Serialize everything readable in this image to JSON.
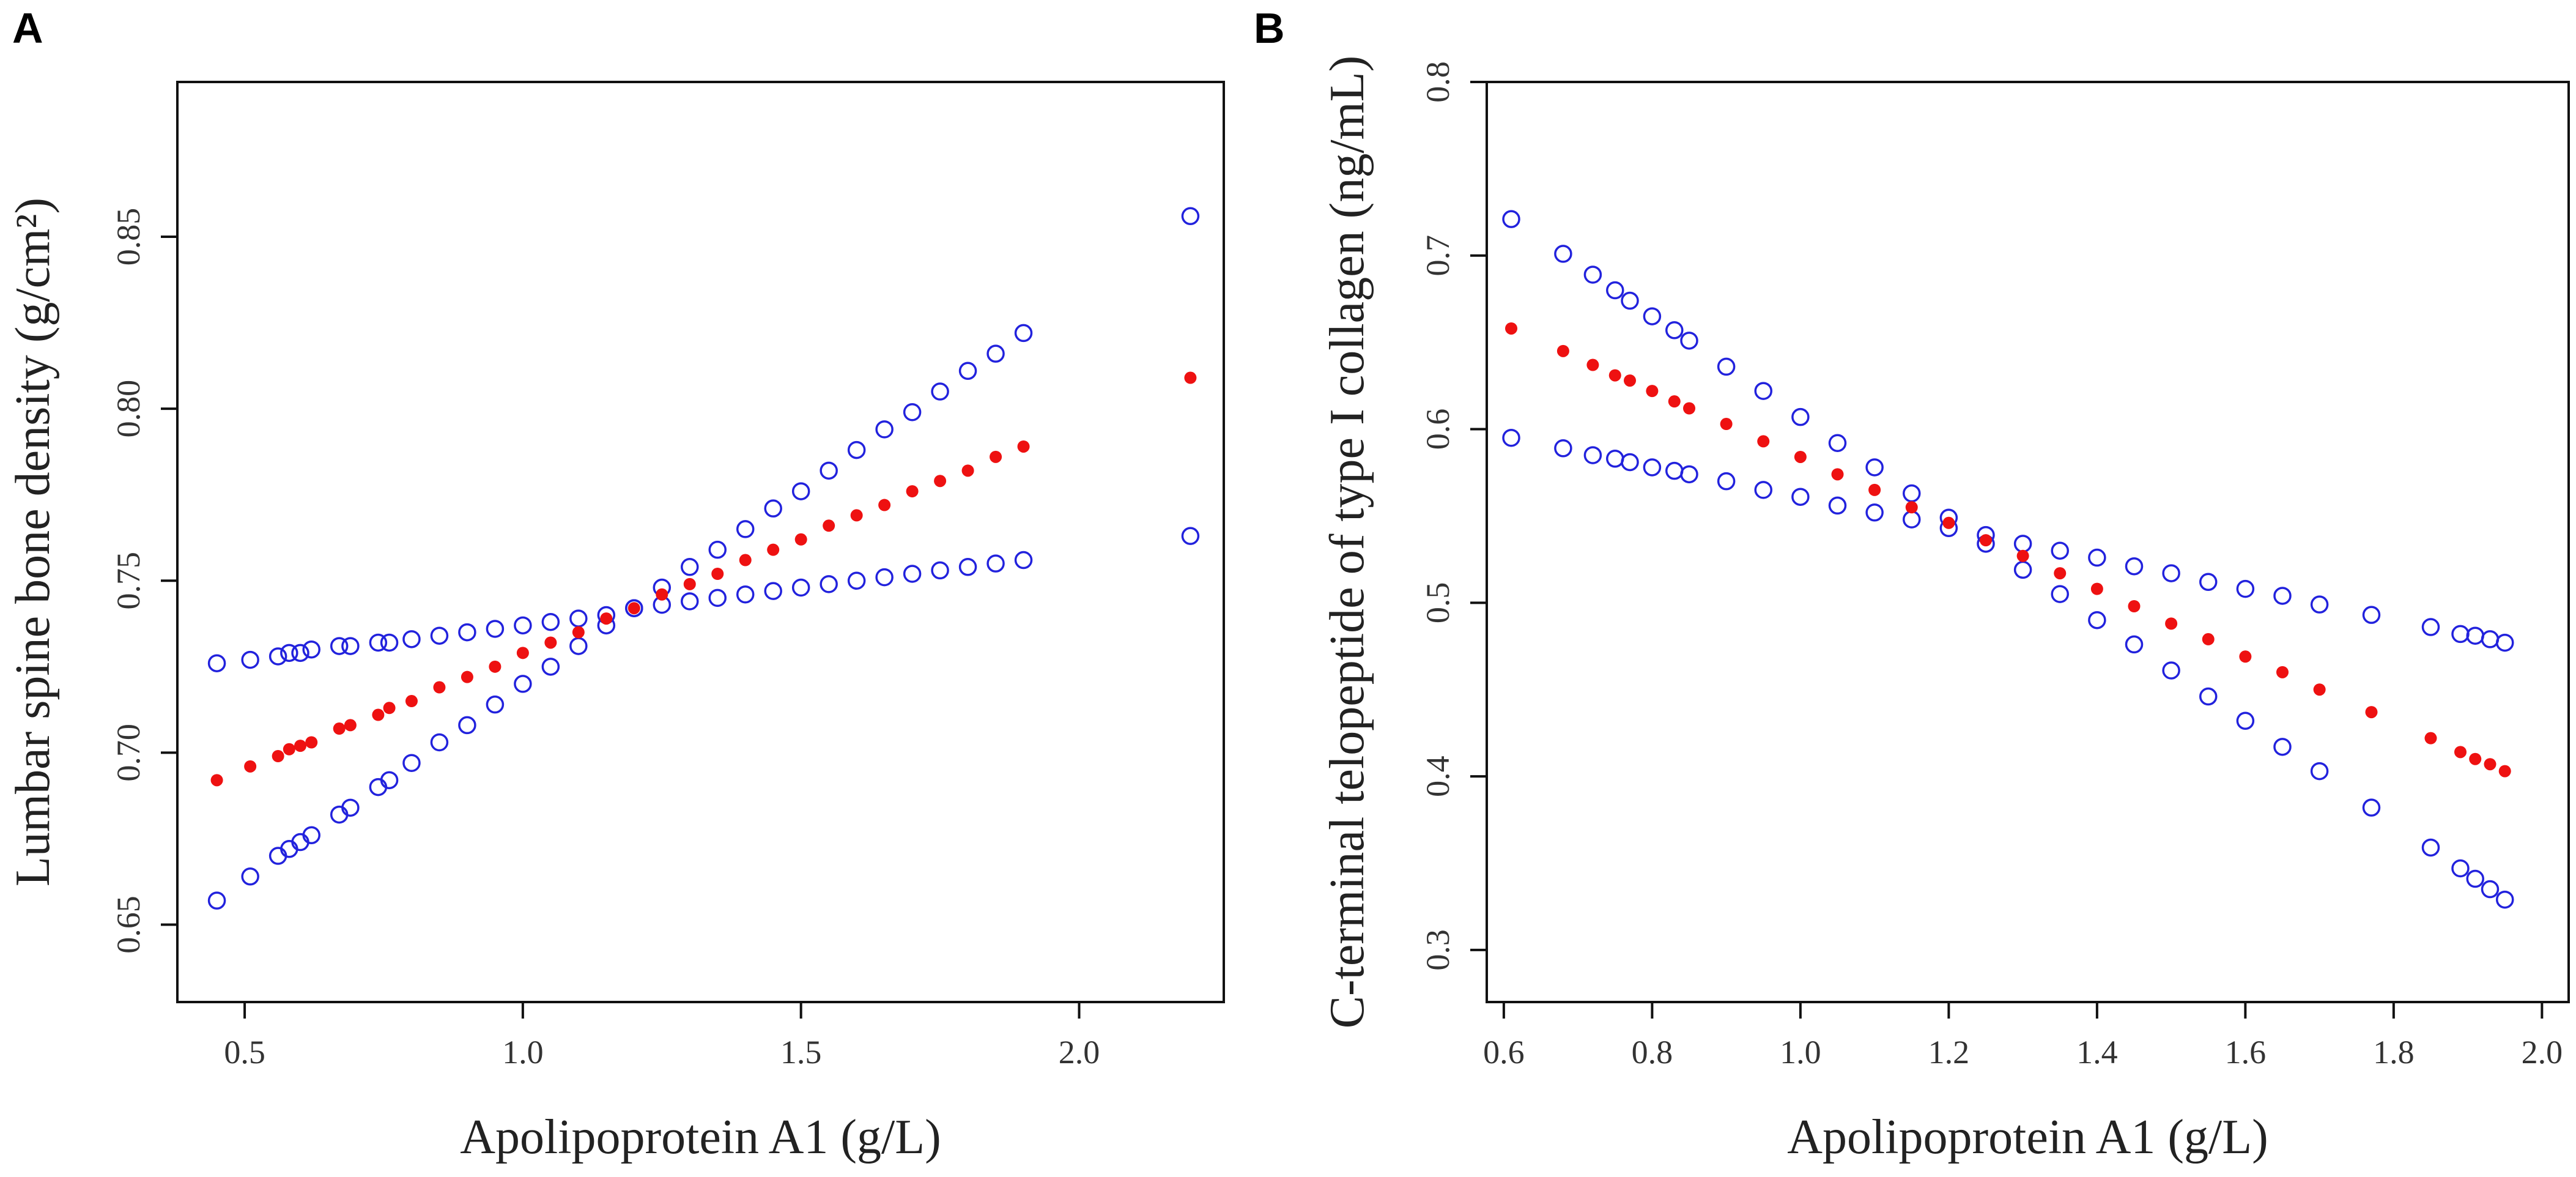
{
  "chart_data": [
    {
      "type": "scatter",
      "panel": "A",
      "xlabel": "Apolipoprotein A1  (g/L)",
      "ylabel": "Lumbar spine bone density (g/cm²)",
      "xlim": [
        0.379,
        2.26
      ],
      "ylim": [
        0.6275,
        0.895
      ],
      "xticks": [
        0.5,
        {
          "value": 1,
          "label": "1.0"
        },
        1.5,
        {
          "value": 2,
          "label": "2.0"
        }
      ],
      "yticks": [
        0.65,
        {
          "value": 0.7,
          "label": "0.70"
        },
        0.75,
        {
          "value": 0.8,
          "label": "0.80"
        },
        0.85
      ],
      "x": [
        0.45,
        0.51,
        0.56,
        0.58,
        0.6,
        0.62,
        0.67,
        0.69,
        0.74,
        0.76,
        0.8,
        0.85,
        0.9,
        0.95,
        1.0,
        1.05,
        1.1,
        1.15,
        1.2,
        1.25,
        1.3,
        1.35,
        1.4,
        1.45,
        1.5,
        1.55,
        1.6,
        1.65,
        1.7,
        1.75,
        1.8,
        1.85,
        1.9,
        2.2
      ],
      "series": [
        {
          "color": "#2222dd",
          "marker": "open",
          "values": [
            0.726,
            0.727,
            0.728,
            0.729,
            0.729,
            0.73,
            0.731,
            0.731,
            0.732,
            0.732,
            0.733,
            0.734,
            0.735,
            0.736,
            0.737,
            0.738,
            0.739,
            0.74,
            0.742,
            0.743,
            0.744,
            0.745,
            0.746,
            0.747,
            0.748,
            0.749,
            0.75,
            0.751,
            0.752,
            0.753,
            0.754,
            0.755,
            0.756,
            0.763
          ]
        },
        {
          "color": "#2222dd",
          "marker": "open",
          "values": [
            0.657,
            0.664,
            0.67,
            0.672,
            0.674,
            0.676,
            0.682,
            0.684,
            0.69,
            0.692,
            0.697,
            0.703,
            0.708,
            0.714,
            0.72,
            0.725,
            0.731,
            0.737,
            0.742,
            0.748,
            0.754,
            0.759,
            0.765,
            0.771,
            0.776,
            0.782,
            0.788,
            0.794,
            0.799,
            0.805,
            0.811,
            0.816,
            0.822,
            0.856
          ]
        },
        {
          "color": "#ee1111",
          "marker": "filled",
          "values": [
            0.692,
            0.696,
            0.699,
            0.701,
            0.702,
            0.703,
            0.707,
            0.708,
            0.711,
            0.713,
            0.715,
            0.719,
            0.722,
            0.725,
            0.729,
            0.732,
            0.735,
            0.739,
            0.742,
            0.746,
            0.749,
            0.752,
            0.756,
            0.759,
            0.762,
            0.766,
            0.769,
            0.772,
            0.776,
            0.779,
            0.782,
            0.786,
            0.789,
            0.809
          ]
        }
      ]
    },
    {
      "type": "scatter",
      "panel": "B",
      "xlabel": "Apolipoprotein A1  (g/L)",
      "ylabel": "C-terminal telopeptide of type I collagen (ng/mL)",
      "xlim": [
        0.577,
        2.036
      ],
      "ylim": [
        0.27,
        0.8
      ],
      "xticks": [
        0.6,
        0.8,
        {
          "value": 1,
          "label": "1.0"
        },
        1.2,
        1.4,
        1.6,
        1.8,
        {
          "value": 2,
          "label": "2.0"
        }
      ],
      "yticks": [
        0.3,
        0.4,
        0.5,
        0.6,
        0.7,
        0.8
      ],
      "x": [
        0.61,
        0.68,
        0.72,
        0.75,
        0.77,
        0.8,
        0.83,
        0.85,
        0.9,
        0.95,
        1.0,
        1.05,
        1.1,
        1.15,
        1.2,
        1.25,
        1.3,
        1.35,
        1.4,
        1.45,
        1.5,
        1.55,
        1.6,
        1.65,
        1.7,
        1.77,
        1.85,
        1.89,
        1.91,
        1.93,
        1.95
      ],
      "series": [
        {
          "color": "#2222dd",
          "marker": "open",
          "values": [
            0.721,
            0.701,
            0.689,
            0.68,
            0.674,
            0.665,
            0.657,
            0.651,
            0.636,
            0.622,
            0.607,
            0.592,
            0.578,
            0.563,
            0.549,
            0.534,
            0.519,
            0.505,
            0.49,
            0.476,
            0.461,
            0.446,
            0.432,
            0.417,
            0.403,
            0.382,
            0.359,
            0.347,
            0.341,
            0.335,
            0.329
          ]
        },
        {
          "color": "#2222dd",
          "marker": "open",
          "values": [
            0.595,
            0.589,
            0.585,
            0.583,
            0.581,
            0.578,
            0.576,
            0.574,
            0.57,
            0.565,
            0.561,
            0.556,
            0.552,
            0.548,
            0.543,
            0.539,
            0.534,
            0.53,
            0.526,
            0.521,
            0.517,
            0.512,
            0.508,
            0.504,
            0.499,
            0.493,
            0.486,
            0.482,
            0.481,
            0.479,
            0.477
          ]
        },
        {
          "color": "#ee1111",
          "marker": "filled",
          "values": [
            0.658,
            0.645,
            0.637,
            0.631,
            0.628,
            0.622,
            0.616,
            0.612,
            0.603,
            0.593,
            0.584,
            0.574,
            0.565,
            0.555,
            0.546,
            0.536,
            0.527,
            0.517,
            0.508,
            0.498,
            0.488,
            0.479,
            0.469,
            0.46,
            0.45,
            0.437,
            0.422,
            0.414,
            0.41,
            0.407,
            0.403
          ]
        }
      ]
    }
  ]
}
